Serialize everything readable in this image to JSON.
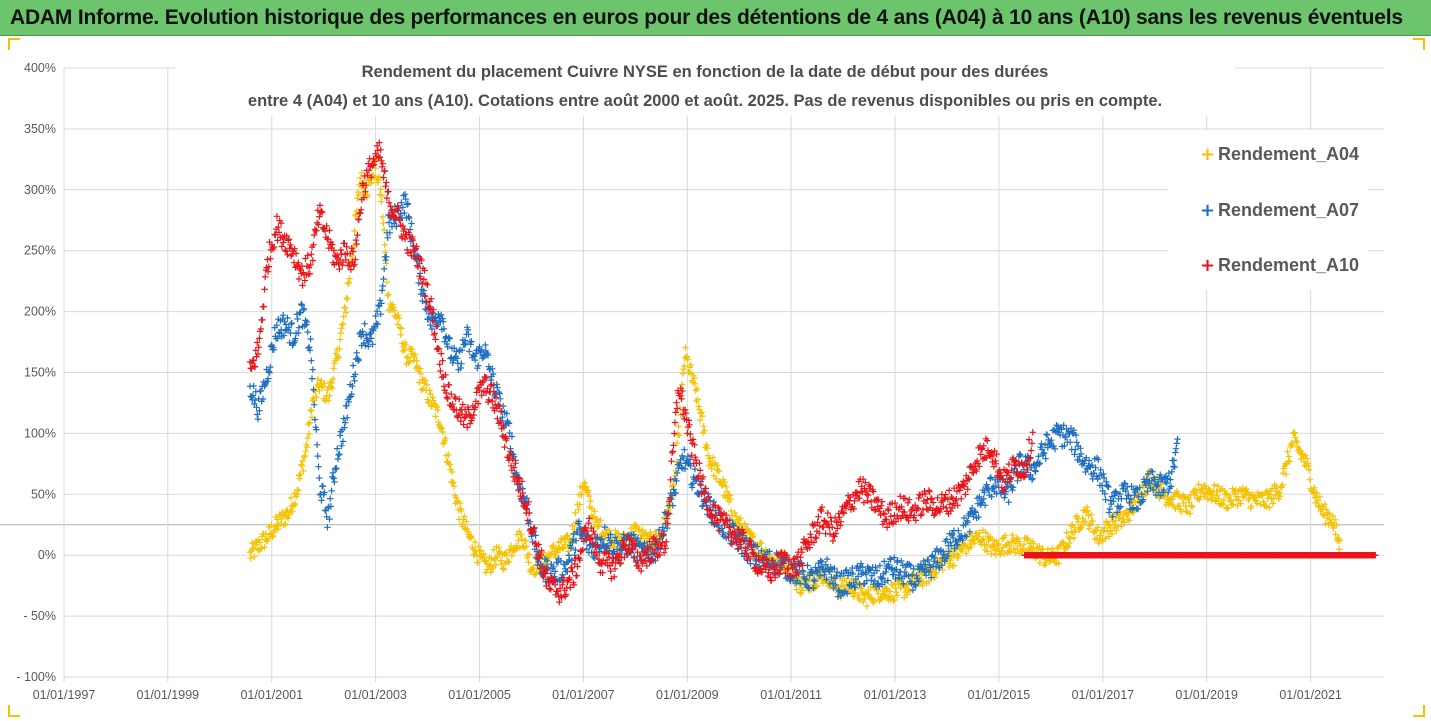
{
  "banner": {
    "title": "ADAM Informe. Evolution historique des performances en euros pour des détentions de 4 ans (A04) à 10 ans (A10) sans les revenus éventuels"
  },
  "colors": {
    "banner_bg": "#6cc46c",
    "Rendement_A04": "#f5c200",
    "Rendement_A07": "#1f6fc1",
    "Rendement_A10": "#e8151b",
    "gridline": "#d9d9d9"
  },
  "chart_data": {
    "type": "scatter",
    "title_lines": [
      "Rendement du placement Cuivre NYSE en fonction de la date de début pour des durées",
      "entre 4 (A04) et 10 ans (A10). Cotations entre août 2000 et août. 2025. Pas de revenus disponibles ou pris en compte."
    ],
    "xlabel": "",
    "ylabel": "",
    "marker": "+",
    "legend_position": "right",
    "grid": "horizontal",
    "xlim": [
      "1997-01-01",
      "2022-06-01"
    ],
    "ylim": [
      -100,
      400
    ],
    "y_unit": "%",
    "x_ticks": [
      "01/01/1997",
      "01/01/1999",
      "01/01/2001",
      "01/01/2003",
      "01/01/2005",
      "01/01/2007",
      "01/01/2009",
      "01/01/2011",
      "01/01/2013",
      "01/01/2015",
      "01/01/2017",
      "01/01/2019",
      "01/01/2021"
    ],
    "y_ticks": [
      "- 100%",
      "- 50%",
      "0%",
      "50%",
      "100%",
      "150%",
      "200%",
      "250%",
      "300%",
      "350%",
      "400%"
    ],
    "y_tick_values": [
      -100,
      -50,
      0,
      50,
      100,
      150,
      200,
      250,
      300,
      350,
      400
    ],
    "reference_line_y": 25,
    "series": [
      {
        "name": "Rendement_A04",
        "x": [
          "2000-08-01",
          "2000-10-01",
          "2000-12-01",
          "2001-01-15",
          "2001-03-01",
          "2001-05-01",
          "2001-07-01",
          "2001-09-01",
          "2001-10-15",
          "2001-12-01",
          "2002-02-01",
          "2002-04-01",
          "2002-06-01",
          "2002-08-01",
          "2002-09-15",
          "2002-11-01",
          "2003-01-01",
          "2003-02-15",
          "2003-04-01",
          "2003-06-01",
          "2003-08-01",
          "2003-10-01",
          "2003-12-01",
          "2004-02-01",
          "2004-04-01",
          "2004-06-01",
          "2004-08-01",
          "2004-10-01",
          "2004-12-01",
          "2005-01-15",
          "2005-03-01",
          "2005-05-01",
          "2005-07-01",
          "2005-09-01",
          "2005-11-01",
          "2006-01-01",
          "2006-04-01",
          "2006-07-01",
          "2006-10-01",
          "2007-01-01",
          "2007-04-01",
          "2007-07-01",
          "2007-10-01",
          "2008-01-01",
          "2008-04-01",
          "2008-07-01",
          "2008-10-01",
          "2008-12-15",
          "2009-03-01",
          "2009-06-01",
          "2009-09-01",
          "2009-12-01",
          "2010-03-01",
          "2010-06-01",
          "2010-09-01",
          "2010-12-01",
          "2011-03-01",
          "2011-06-01",
          "2011-09-01",
          "2011-12-01",
          "2012-03-01",
          "2012-06-01",
          "2012-09-01",
          "2012-12-01",
          "2013-03-01",
          "2013-06-01",
          "2013-09-01",
          "2013-12-01",
          "2014-03-01",
          "2014-06-01",
          "2014-09-01",
          "2014-12-01",
          "2015-03-01",
          "2015-06-01",
          "2015-09-01",
          "2015-12-01",
          "2016-03-01",
          "2016-06-01",
          "2016-09-01",
          "2016-12-01",
          "2017-03-01",
          "2017-06-01",
          "2017-09-01",
          "2017-12-01",
          "2018-03-01",
          "2018-06-01",
          "2018-09-01",
          "2018-12-01",
          "2019-03-01",
          "2019-06-01",
          "2019-09-01",
          "2019-12-01",
          "2020-03-01",
          "2020-06-01",
          "2020-09-01",
          "2020-12-01",
          "2021-02-01",
          "2021-04-01",
          "2021-06-01",
          "2021-08-01"
        ],
        "values": [
          0,
          8,
          15,
          22,
          28,
          35,
          55,
          88,
          125,
          140,
          130,
          160,
          200,
          260,
          310,
          300,
          320,
          290,
          210,
          195,
          165,
          160,
          140,
          125,
          110,
          75,
          40,
          20,
          5,
          -5,
          -10,
          0,
          -5,
          10,
          15,
          -10,
          -5,
          5,
          10,
          60,
          25,
          15,
          10,
          20,
          10,
          15,
          55,
          165,
          135,
          80,
          60,
          30,
          15,
          5,
          -5,
          -5,
          -25,
          -20,
          -15,
          -28,
          -25,
          -35,
          -30,
          -30,
          -28,
          -20,
          -15,
          -5,
          0,
          10,
          15,
          5,
          10,
          8,
          5,
          -3,
          0,
          20,
          35,
          15,
          25,
          30,
          45,
          65,
          50,
          45,
          40,
          55,
          50,
          45,
          50,
          45,
          45,
          55,
          95,
          75,
          50,
          35,
          30,
          5
        ],
        "spread": 8
      },
      {
        "name": "Rendement_A07",
        "x": [
          "2000-08-01",
          "2000-10-01",
          "2000-12-01",
          "2001-02-01",
          "2001-04-01",
          "2001-06-01",
          "2001-08-01",
          "2001-10-01",
          "2001-12-01",
          "2002-02-01",
          "2002-04-01",
          "2002-06-01",
          "2002-08-01",
          "2002-10-01",
          "2002-12-01",
          "2003-02-01",
          "2003-04-01",
          "2003-06-01",
          "2003-08-01",
          "2003-10-01",
          "2003-12-01",
          "2004-02-01",
          "2004-04-01",
          "2004-06-01",
          "2004-08-01",
          "2004-10-01",
          "2004-12-01",
          "2005-02-01",
          "2005-04-01",
          "2005-06-01",
          "2005-08-01",
          "2005-10-01",
          "2005-12-01",
          "2006-03-01",
          "2006-06-01",
          "2006-09-01",
          "2006-12-01",
          "2007-03-01",
          "2007-06-01",
          "2007-09-01",
          "2007-12-01",
          "2008-03-01",
          "2008-06-01",
          "2008-09-01",
          "2008-12-01",
          "2009-03-01",
          "2009-06-01",
          "2009-09-01",
          "2009-12-01",
          "2010-03-01",
          "2010-06-01",
          "2010-09-01",
          "2010-12-01",
          "2011-03-01",
          "2011-06-01",
          "2011-09-01",
          "2011-12-01",
          "2012-03-01",
          "2012-06-01",
          "2012-09-01",
          "2012-12-01",
          "2013-03-01",
          "2013-06-01",
          "2013-09-01",
          "2013-12-01",
          "2014-03-01",
          "2014-06-01",
          "2014-09-01",
          "2014-12-01",
          "2015-03-01",
          "2015-06-01",
          "2015-09-01",
          "2015-12-01",
          "2016-03-01",
          "2016-06-01",
          "2016-09-01",
          "2016-12-01",
          "2017-03-01",
          "2017-06-01",
          "2017-09-01",
          "2017-12-01",
          "2018-03-01",
          "2018-05-01",
          "2018-06-15"
        ],
        "values": [
          140,
          120,
          150,
          185,
          190,
          180,
          200,
          170,
          60,
          30,
          80,
          110,
          150,
          185,
          175,
          200,
          270,
          280,
          290,
          250,
          215,
          190,
          200,
          170,
          155,
          180,
          160,
          170,
          145,
          120,
          100,
          60,
          40,
          -10,
          -15,
          -10,
          20,
          5,
          15,
          5,
          10,
          0,
          5,
          40,
          80,
          60,
          40,
          25,
          15,
          5,
          -5,
          -5,
          -10,
          -15,
          -20,
          -10,
          -25,
          -20,
          -15,
          -20,
          -10,
          -15,
          -20,
          -10,
          0,
          15,
          25,
          45,
          60,
          50,
          75,
          70,
          90,
          100,
          95,
          75,
          70,
          40,
          50,
          45,
          60,
          55,
          65,
          95
        ],
        "spread": 10
      },
      {
        "name": "Rendement_A10",
        "x": [
          "2000-08-01",
          "2000-10-01",
          "2000-12-01",
          "2001-02-01",
          "2001-04-01",
          "2001-06-01",
          "2001-08-01",
          "2001-10-01",
          "2001-12-01",
          "2002-02-01",
          "2002-04-01",
          "2002-06-01",
          "2002-08-01",
          "2002-10-01",
          "2002-12-01",
          "2003-02-01",
          "2003-04-01",
          "2003-06-01",
          "2003-08-01",
          "2003-10-01",
          "2003-12-01",
          "2004-02-01",
          "2004-04-01",
          "2004-06-01",
          "2004-08-01",
          "2004-10-01",
          "2004-12-01",
          "2005-02-01",
          "2005-04-01",
          "2005-06-01",
          "2005-08-01",
          "2005-10-01",
          "2005-12-01",
          "2006-02-01",
          "2006-05-01",
          "2006-08-01",
          "2006-11-01",
          "2007-02-01",
          "2007-05-01",
          "2007-08-01",
          "2007-11-01",
          "2008-02-01",
          "2008-05-01",
          "2008-08-01",
          "2008-11-01",
          "2009-02-01",
          "2009-05-01",
          "2009-08-01",
          "2009-11-01",
          "2010-02-01",
          "2010-05-01",
          "2010-08-01",
          "2010-11-01",
          "2011-02-01",
          "2011-05-01",
          "2011-08-01",
          "2011-11-01",
          "2012-02-01",
          "2012-05-01",
          "2012-08-01",
          "2012-11-01",
          "2013-02-01",
          "2013-05-01",
          "2013-08-01",
          "2013-11-01",
          "2014-02-01",
          "2014-05-01",
          "2014-08-01",
          "2014-11-01",
          "2015-02-01",
          "2015-05-01",
          "2015-07-01",
          "2015-09-01"
        ],
        "values": [
          150,
          170,
          240,
          270,
          260,
          250,
          230,
          240,
          280,
          260,
          240,
          250,
          240,
          300,
          320,
          330,
          290,
          280,
          260,
          250,
          230,
          200,
          160,
          130,
          120,
          110,
          125,
          140,
          130,
          110,
          80,
          60,
          40,
          10,
          -25,
          -30,
          -15,
          25,
          -5,
          -10,
          10,
          -5,
          5,
          10,
          140,
          90,
          50,
          30,
          20,
          10,
          -5,
          -15,
          -5,
          -10,
          10,
          30,
          20,
          40,
          55,
          45,
          30,
          40,
          35,
          45,
          40,
          45,
          55,
          80,
          90,
          60,
          75,
          70,
          100
        ],
        "spread": 10
      },
      {
        "name": "Rendement_A10_flat",
        "x": [
          "2015-07-01",
          "2022-04-01"
        ],
        "values": [
          0,
          0
        ],
        "spread": 0,
        "flat": true
      }
    ]
  },
  "legend": {
    "items": [
      {
        "label": "Rendement_A04",
        "color": "#f5c200"
      },
      {
        "label": "Rendement_A07",
        "color": "#1f6fc1"
      },
      {
        "label": "Rendement_A10",
        "color": "#e8151b"
      }
    ]
  }
}
